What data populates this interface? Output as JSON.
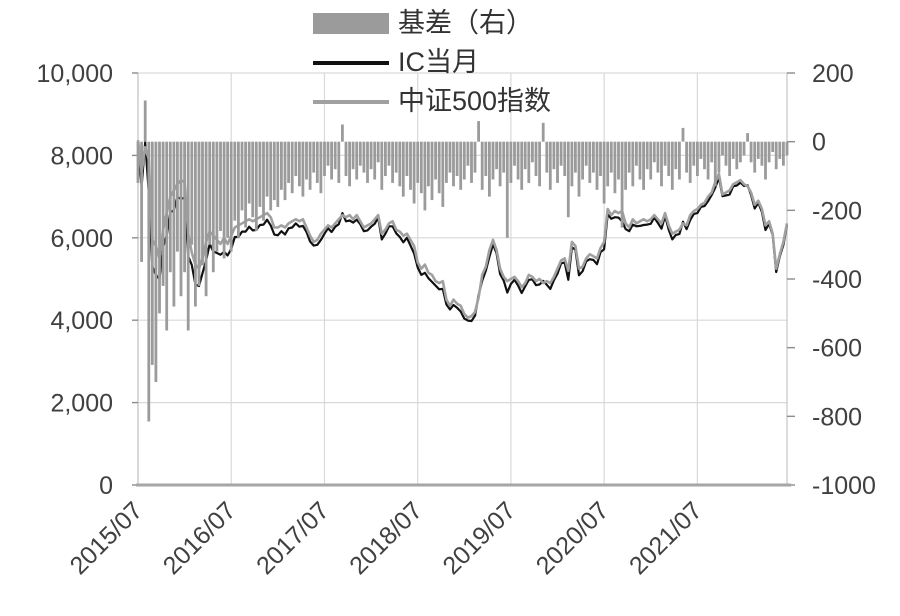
{
  "legend": {
    "items": [
      {
        "label": "基差（右）",
        "type": "bar",
        "color": "#9b9b9b"
      },
      {
        "label": "IC当月",
        "type": "line",
        "color": "#111111"
      },
      {
        "label": "中证500指数",
        "type": "line",
        "color": "#a0a0a0"
      }
    ]
  },
  "colors": {
    "background": "#ffffff",
    "gridline": "#d9d9d9",
    "axis_line": "#c6c6c6",
    "bottom_axis": "#a6a6a6",
    "tick_mark": "#8c8c8c",
    "axis_label": "#404040",
    "bar_series": "#9b9b9b",
    "ic_line": "#111111",
    "index_line": "#a0a0a0"
  },
  "chart_data": {
    "type": "bar",
    "subtype": "combo-bar-line",
    "title": "",
    "xlabel": "",
    "ylabel_left": "",
    "ylabel_right": "",
    "grid": true,
    "legend_position": "top-center",
    "x_axis": {
      "start": "2015/07",
      "end": "2022/06",
      "tick_labels": [
        "2015/07",
        "2016/07",
        "2017/07",
        "2018/07",
        "2019/07",
        "2020/07",
        "2021/07"
      ],
      "tick_indices": [
        0,
        26,
        52,
        78,
        104,
        130,
        156
      ],
      "points_per_year": 26
    },
    "y_left": {
      "min": 0,
      "max": 10000,
      "ticks": [
        {
          "value": 0,
          "label": "0"
        },
        {
          "value": 2000,
          "label": "2,000"
        },
        {
          "value": 4000,
          "label": "4,000"
        },
        {
          "value": 6000,
          "label": "6,000"
        },
        {
          "value": 8000,
          "label": "8,000"
        },
        {
          "value": 10000,
          "label": "10,000"
        }
      ]
    },
    "y_right": {
      "min": -1000,
      "max": 200,
      "ticks": [
        {
          "value": 200,
          "label": "200"
        },
        {
          "value": 0,
          "label": "0"
        },
        {
          "value": -200,
          "label": "-200"
        },
        {
          "value": -400,
          "label": "-400"
        },
        {
          "value": -600,
          "label": "-600"
        },
        {
          "value": -800,
          "label": "-800"
        },
        {
          "value": -1000,
          "label": "-1000"
        }
      ]
    },
    "series": [
      {
        "name": "基差（右）",
        "type": "bar",
        "axis": "right",
        "color": "#9b9b9b",
        "values": [
          -120,
          -350,
          120,
          -815,
          -650,
          -700,
          -500,
          -420,
          -550,
          -380,
          -480,
          -320,
          -450,
          -380,
          -550,
          -300,
          -480,
          -420,
          -360,
          -450,
          -300,
          -380,
          -320,
          -260,
          -340,
          -280,
          -320,
          -230,
          -280,
          -200,
          -250,
          -180,
          -220,
          -260,
          -190,
          -230,
          -160,
          -200,
          -170,
          -190,
          -140,
          -170,
          -120,
          -150,
          -100,
          -130,
          -160,
          -110,
          -140,
          -90,
          -120,
          -150,
          -100,
          -70,
          -110,
          -80,
          -120,
          50,
          -100,
          -130,
          -80,
          -110,
          -70,
          -90,
          -120,
          -80,
          -110,
          -60,
          -140,
          -100,
          -70,
          -120,
          -90,
          -130,
          -160,
          -100,
          -140,
          -180,
          -120,
          -150,
          -200,
          -130,
          -170,
          -110,
          -150,
          -190,
          -120,
          -90,
          -130,
          -100,
          -140,
          -110,
          -70,
          -120,
          -90,
          60,
          -140,
          -100,
          -160,
          -110,
          -80,
          -130,
          -90,
          -280,
          -120,
          -70,
          -110,
          -140,
          -80,
          -120,
          -60,
          -100,
          -130,
          55,
          -90,
          -140,
          -80,
          -120,
          -70,
          -100,
          -220,
          -130,
          -90,
          -160,
          -110,
          -70,
          -120,
          -90,
          -140,
          -100,
          -180,
          -130,
          -90,
          -150,
          -110,
          -250,
          -140,
          -90,
          -130,
          -70,
          -110,
          -140,
          -80,
          -110,
          -60,
          -90,
          -130,
          -70,
          -100,
          -140,
          -80,
          -110,
          40,
          -90,
          -120,
          -70,
          -100,
          -50,
          -80,
          -110,
          -60,
          -130,
          -90,
          -40,
          -70,
          -100,
          -50,
          -80,
          -60,
          -40,
          25,
          -60,
          -90,
          -50,
          -70,
          -110,
          -60,
          -30,
          -80,
          -50,
          -70,
          -40
        ]
      },
      {
        "name": "IC当月",
        "type": "line",
        "axis": "left",
        "color": "#111111",
        "values": [
          8250,
          7250,
          8320,
          7085,
          5300,
          5100,
          5000,
          5780,
          6050,
          6620,
          6670,
          6980,
          6950,
          6970,
          5550,
          5340,
          4870,
          4830,
          5140,
          5450,
          5850,
          5670,
          5630,
          5590,
          5660,
          5570,
          5730,
          6020,
          6020,
          6150,
          6150,
          6270,
          6180,
          6190,
          6310,
          6320,
          6440,
          6300,
          6080,
          6060,
          6160,
          6080,
          6230,
          6250,
          6350,
          6270,
          6290,
          6140,
          5910,
          5810,
          5830,
          5950,
          6100,
          6230,
          6140,
          6270,
          6330,
          6600,
          6400,
          6420,
          6370,
          6440,
          6330,
          6160,
          6180,
          6270,
          6340,
          6490,
          5960,
          6100,
          6280,
          6280,
          6110,
          6020,
          5890,
          6000,
          5810,
          5620,
          5280,
          5100,
          5150,
          5020,
          4930,
          4840,
          4750,
          4760,
          4380,
          4260,
          4370,
          4300,
          4210,
          4040,
          3990,
          3980,
          4110,
          4610,
          4960,
          5200,
          5540,
          5840,
          5620,
          5120,
          4960,
          4670,
          4880,
          4980,
          4840,
          4660,
          4820,
          4980,
          4990,
          4850,
          4870,
          4955,
          4860,
          4760,
          4970,
          5130,
          5380,
          5400,
          4980,
          5770,
          5710,
          5090,
          5190,
          5430,
          5480,
          5460,
          5360,
          5650,
          5720,
          6570,
          6460,
          6500,
          6490,
          6400,
          6210,
          6160,
          6320,
          6280,
          6290,
          6310,
          6320,
          6340,
          6490,
          6360,
          6220,
          6530,
          6200,
          5960,
          6070,
          6090,
          6390,
          6210,
          6430,
          6580,
          6600,
          6750,
          6770,
          6890,
          7040,
          7220,
          7460,
          7010,
          7030,
          7050,
          7250,
          7270,
          7340,
          7260,
          7275,
          7040,
          6710,
          6850,
          6630,
          6190,
          6340,
          6070,
          5170,
          5550,
          5830,
          6310
        ]
      },
      {
        "name": "中证500指数",
        "type": "line",
        "axis": "left",
        "color": "#a0a0a0",
        "values": [
          8370,
          7600,
          8200,
          7900,
          5950,
          5800,
          5500,
          6200,
          6600,
          7000,
          7150,
          7300,
          7400,
          7350,
          6100,
          5640,
          5350,
          5250,
          5500,
          5900,
          6150,
          6050,
          5950,
          5850,
          6000,
          5850,
          6050,
          6250,
          6300,
          6350,
          6400,
          6450,
          6400,
          6450,
          6500,
          6550,
          6600,
          6500,
          6250,
          6250,
          6300,
          6250,
          6350,
          6400,
          6450,
          6400,
          6450,
          6250,
          6050,
          5900,
          5950,
          6100,
          6200,
          6300,
          6250,
          6350,
          6450,
          6550,
          6500,
          6550,
          6450,
          6550,
          6400,
          6250,
          6300,
          6350,
          6450,
          6550,
          6100,
          6200,
          6350,
          6400,
          6200,
          6150,
          6050,
          6100,
          5950,
          5800,
          5400,
          5250,
          5350,
          5150,
          5100,
          4950,
          4900,
          4950,
          4500,
          4350,
          4500,
          4400,
          4350,
          4150,
          4060,
          4100,
          4200,
          4550,
          5100,
          5300,
          5700,
          5950,
          5700,
          5250,
          5050,
          4950,
          5000,
          5050,
          4950,
          4800,
          4900,
          5100,
          5050,
          4950,
          5000,
          4900,
          4950,
          4900,
          5050,
          5250,
          5450,
          5500,
          5200,
          5900,
          5800,
          5250,
          5300,
          5500,
          5600,
          5550,
          5500,
          5750,
          5900,
          6700,
          6550,
          6650,
          6600,
          6650,
          6350,
          6250,
          6450,
          6350,
          6400,
          6450,
          6400,
          6450,
          6550,
          6450,
          6350,
          6600,
          6300,
          6100,
          6150,
          6200,
          6350,
          6300,
          6550,
          6650,
          6700,
          6800,
          6850,
          7000,
          7100,
          7350,
          7550,
          7050,
          7100,
          7150,
          7300,
          7350,
          7400,
          7300,
          7250,
          7100,
          6800,
          6900,
          6700,
          6300,
          6400,
          6100,
          5250,
          5600,
          5900,
          6350
        ]
      }
    ]
  }
}
